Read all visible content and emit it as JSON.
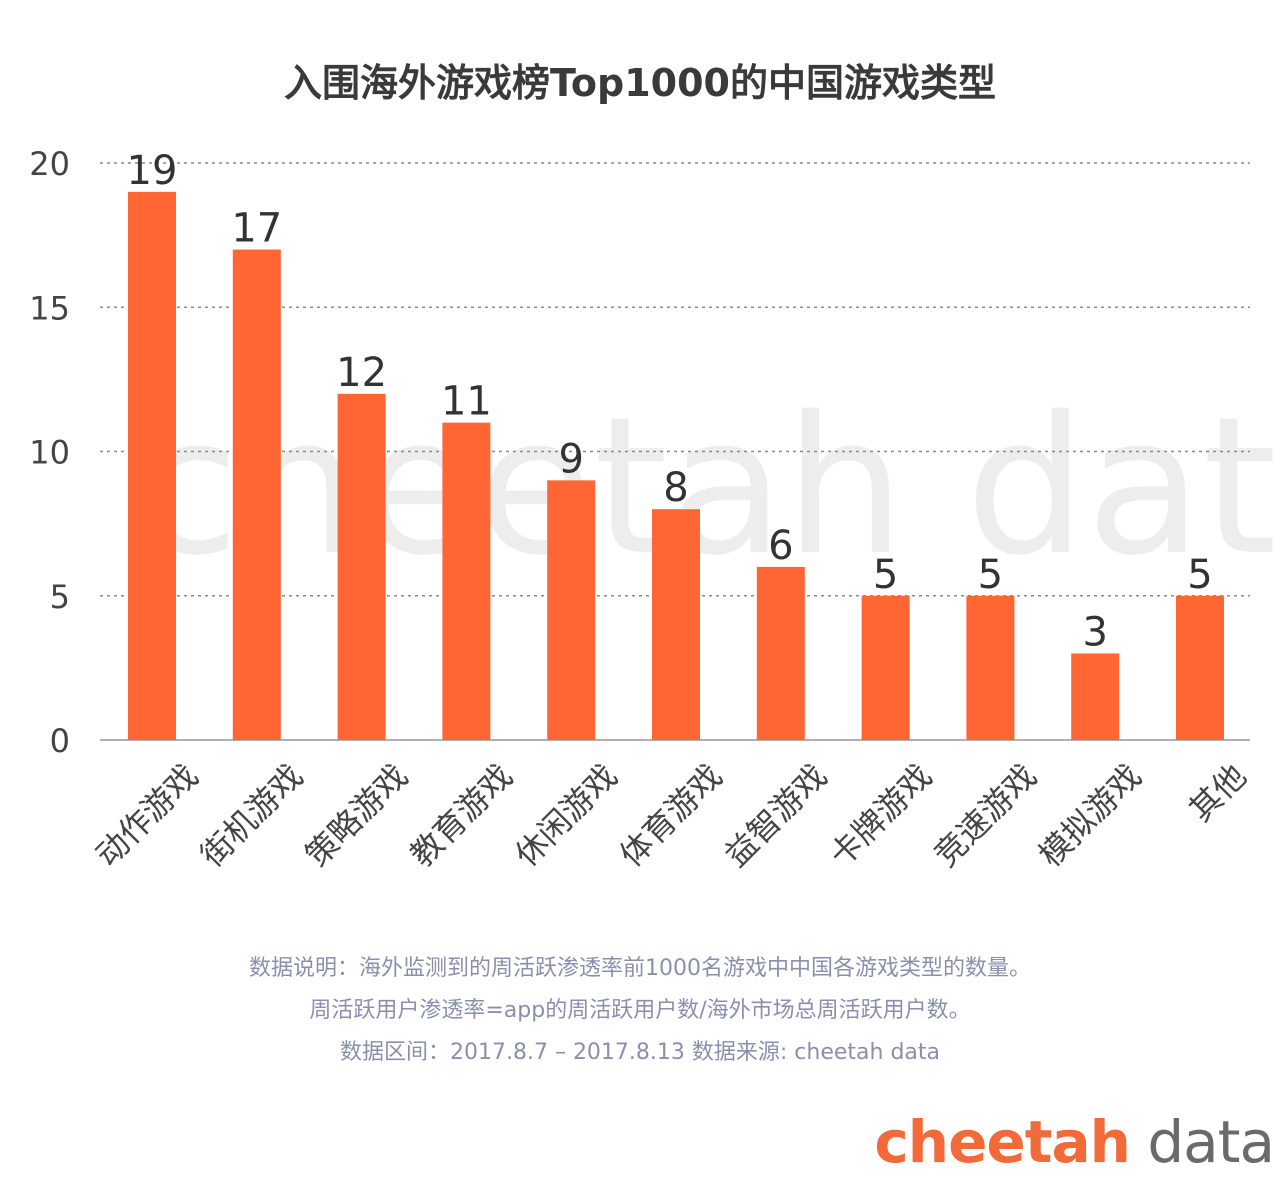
{
  "chart_data": {
    "type": "bar",
    "title": "入围海外游戏榜Top1000的中国游戏类型",
    "categories": [
      "动作游戏",
      "街机游戏",
      "策略游戏",
      "教育游戏",
      "休闲游戏",
      "体育游戏",
      "益智游戏",
      "卡牌游戏",
      "竞速游戏",
      "模拟游戏",
      "其他"
    ],
    "values": [
      19,
      17,
      12,
      11,
      9,
      8,
      6,
      5,
      5,
      3,
      5
    ],
    "ylim": [
      0,
      20
    ],
    "yticks": [
      0,
      5,
      10,
      15,
      20
    ],
    "xlabel": "",
    "ylabel": "",
    "grid": true,
    "bar_color": "#ff6633",
    "watermark": "cheetah data"
  },
  "notes": {
    "line1": "数据说明：海外监测到的周活跃渗透率前1000名游戏中中国各游戏类型的数量。",
    "line2": "周活跃用户渗透率=app的周活跃用户数/海外市场总周活跃用户数。",
    "line3": "数据区间：2017.8.7 – 2017.8.13 数据来源: cheetah data"
  },
  "logo": {
    "part1": "cheetah",
    "part2": " data"
  },
  "colors": {
    "accent": "#f26a3a",
    "bar": "#ff6633",
    "notes": "#8a8fae"
  }
}
